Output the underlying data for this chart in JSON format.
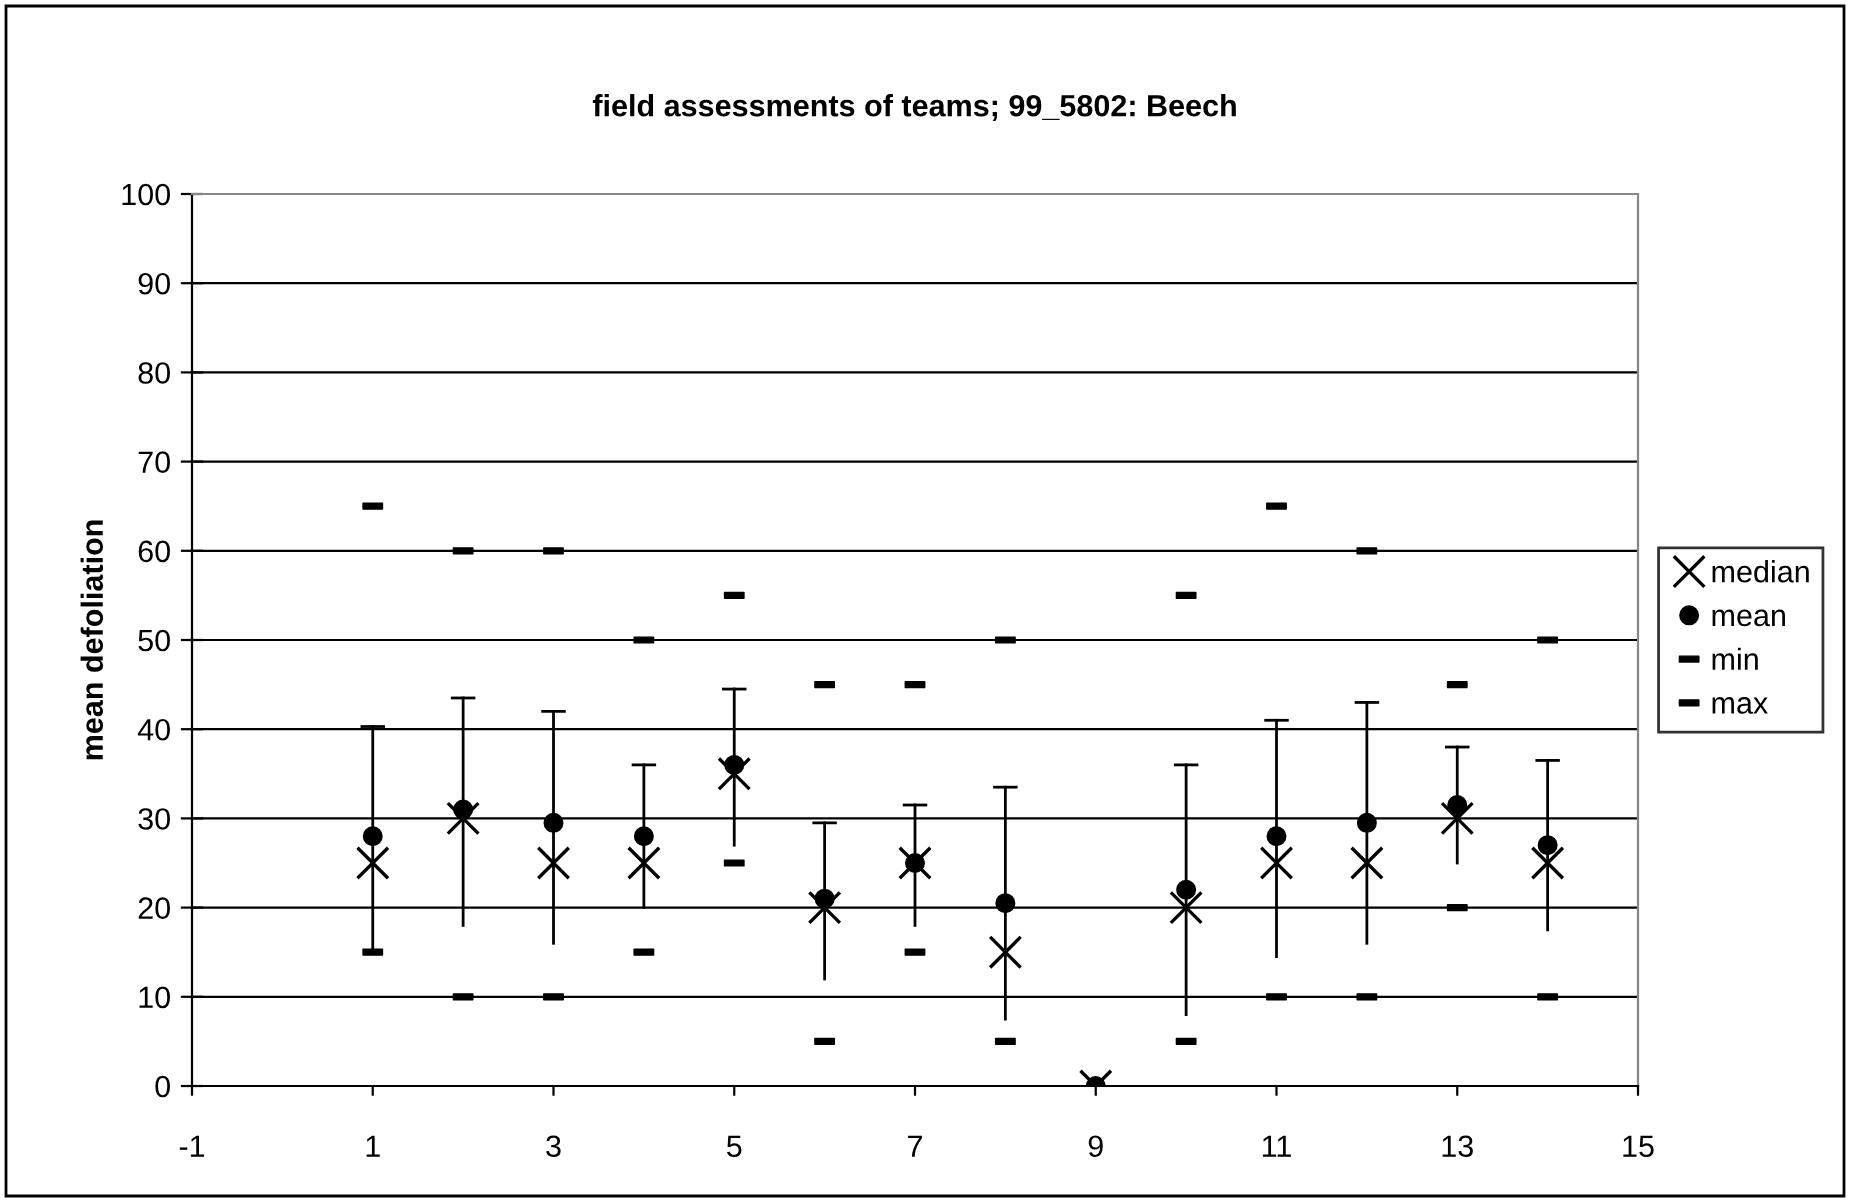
{
  "chart_data": {
    "type": "scatter",
    "title": "field assessments of teams; 99_5802: Beech",
    "ylabel": "mean defoliation",
    "x": [
      1,
      2,
      3,
      4,
      5,
      6,
      7,
      8,
      9,
      10,
      11,
      12,
      13,
      14
    ],
    "series": [
      {
        "name": "median",
        "color": "#000000",
        "marker": "cross",
        "values": [
          25,
          30,
          25,
          25,
          35,
          20,
          25,
          15,
          0,
          20,
          25,
          25,
          30,
          25
        ]
      },
      {
        "name": "mean",
        "color": "#000000",
        "marker": "circle",
        "values": [
          28,
          31,
          29.5,
          28,
          36,
          21,
          25,
          20.5,
          0,
          22,
          28,
          29.5,
          31.5,
          27
        ],
        "errors": [
          [
            15.5,
            40.3
          ],
          [
            18,
            43.5
          ],
          [
            16,
            42
          ],
          [
            20,
            36
          ],
          [
            27,
            44.5
          ],
          [
            12,
            29.5
          ],
          [
            18,
            31.5
          ],
          [
            7.5,
            33.5
          ],
          null,
          [
            8,
            36
          ],
          [
            14.5,
            41
          ],
          [
            16,
            43
          ],
          [
            25,
            38
          ],
          [
            17.5,
            36.5
          ]
        ]
      },
      {
        "name": "min",
        "color": "#000000",
        "marker": "square",
        "values": [
          15,
          10,
          10,
          15,
          25,
          5,
          15,
          5,
          null,
          5,
          10,
          10,
          20,
          10
        ]
      },
      {
        "name": "max",
        "color": "#000000",
        "marker": "square",
        "values": [
          65,
          60,
          60,
          50,
          55,
          45,
          45,
          50,
          null,
          55,
          65,
          60,
          45,
          50
        ]
      }
    ],
    "xlim": [
      -1,
      15
    ],
    "xticks": [
      -1,
      1,
      3,
      5,
      7,
      9,
      11,
      13,
      15
    ],
    "ylim": [
      0,
      100
    ],
    "yticks": [
      0,
      10,
      20,
      30,
      40,
      50,
      60,
      70,
      80,
      90,
      100
    ],
    "grid": "y",
    "legend": "right"
  }
}
